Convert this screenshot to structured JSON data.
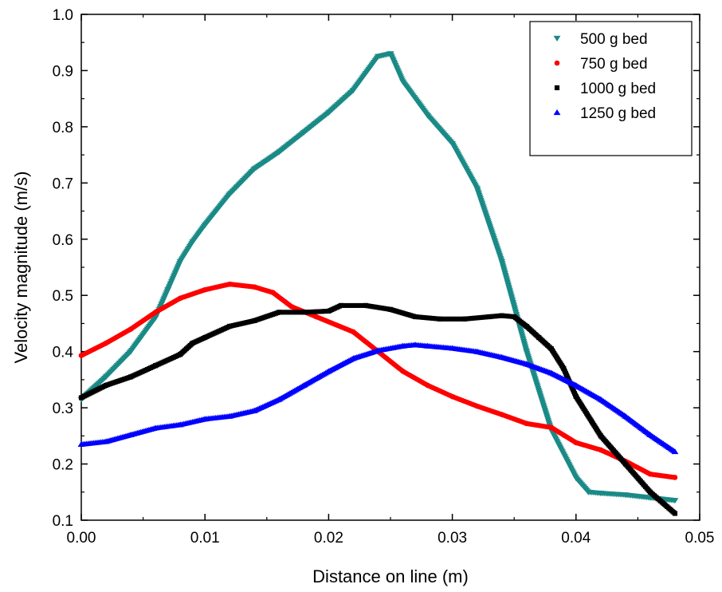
{
  "chart_data": {
    "type": "scatter",
    "xlabel": "Distance on line (m)",
    "ylabel": "Velocity magnitude (m/s)",
    "xlim": [
      0.0,
      0.05
    ],
    "ylim": [
      0.1,
      1.0
    ],
    "xticks": [
      "0.00",
      "0.01",
      "0.02",
      "0.03",
      "0.04",
      "0.05"
    ],
    "yticks": [
      "0.1",
      "0.2",
      "0.3",
      "0.4",
      "0.5",
      "0.6",
      "0.7",
      "0.8",
      "0.9",
      "1.0"
    ],
    "grid": false,
    "legend_position": "top-right",
    "series": [
      {
        "name": "500 g bed",
        "color": "#1a8a86",
        "marker": "triangle-down",
        "x": [
          0.0,
          0.002,
          0.004,
          0.006,
          0.007,
          0.008,
          0.009,
          0.01,
          0.012,
          0.014,
          0.016,
          0.018,
          0.02,
          0.022,
          0.024,
          0.025,
          0.026,
          0.028,
          0.03,
          0.032,
          0.034,
          0.036,
          0.038,
          0.04,
          0.041,
          0.042,
          0.044,
          0.046,
          0.048
        ],
        "y": [
          0.315,
          0.355,
          0.4,
          0.46,
          0.51,
          0.56,
          0.595,
          0.625,
          0.68,
          0.725,
          0.755,
          0.79,
          0.825,
          0.865,
          0.925,
          0.93,
          0.88,
          0.82,
          0.77,
          0.69,
          0.56,
          0.4,
          0.26,
          0.175,
          0.15,
          0.148,
          0.145,
          0.14,
          0.135
        ]
      },
      {
        "name": "750 g bed",
        "color": "#ff0000",
        "marker": "circle",
        "x": [
          0.0,
          0.002,
          0.004,
          0.006,
          0.008,
          0.01,
          0.012,
          0.014,
          0.0155,
          0.017,
          0.019,
          0.022,
          0.024,
          0.026,
          0.028,
          0.03,
          0.032,
          0.034,
          0.036,
          0.038,
          0.04,
          0.042,
          0.044,
          0.046,
          0.048
        ],
        "y": [
          0.393,
          0.415,
          0.44,
          0.47,
          0.495,
          0.51,
          0.52,
          0.515,
          0.505,
          0.48,
          0.462,
          0.435,
          0.4,
          0.365,
          0.34,
          0.32,
          0.303,
          0.288,
          0.272,
          0.265,
          0.238,
          0.225,
          0.205,
          0.182,
          0.176
        ]
      },
      {
        "name": "1000 g bed",
        "color": "#000000",
        "marker": "square",
        "x": [
          0.0,
          0.002,
          0.004,
          0.006,
          0.008,
          0.009,
          0.01,
          0.012,
          0.014,
          0.016,
          0.018,
          0.02,
          0.021,
          0.023,
          0.025,
          0.027,
          0.029,
          0.031,
          0.033,
          0.034,
          0.035,
          0.036,
          0.037,
          0.038,
          0.039,
          0.04,
          0.042,
          0.044,
          0.046,
          0.048
        ],
        "y": [
          0.318,
          0.34,
          0.355,
          0.375,
          0.395,
          0.415,
          0.425,
          0.445,
          0.455,
          0.47,
          0.47,
          0.472,
          0.482,
          0.482,
          0.475,
          0.462,
          0.458,
          0.458,
          0.462,
          0.464,
          0.462,
          0.445,
          0.425,
          0.405,
          0.37,
          0.32,
          0.25,
          0.2,
          0.15,
          0.112
        ]
      },
      {
        "name": "1250 g bed",
        "color": "#0000ff",
        "marker": "triangle-up",
        "x": [
          0.0,
          0.002,
          0.004,
          0.006,
          0.008,
          0.01,
          0.012,
          0.014,
          0.016,
          0.018,
          0.02,
          0.022,
          0.024,
          0.026,
          0.027,
          0.028,
          0.03,
          0.032,
          0.034,
          0.036,
          0.038,
          0.04,
          0.042,
          0.044,
          0.046,
          0.048
        ],
        "y": [
          0.235,
          0.24,
          0.252,
          0.264,
          0.27,
          0.28,
          0.285,
          0.295,
          0.315,
          0.34,
          0.365,
          0.388,
          0.402,
          0.41,
          0.412,
          0.41,
          0.406,
          0.4,
          0.39,
          0.378,
          0.362,
          0.34,
          0.315,
          0.285,
          0.252,
          0.222
        ]
      }
    ]
  }
}
